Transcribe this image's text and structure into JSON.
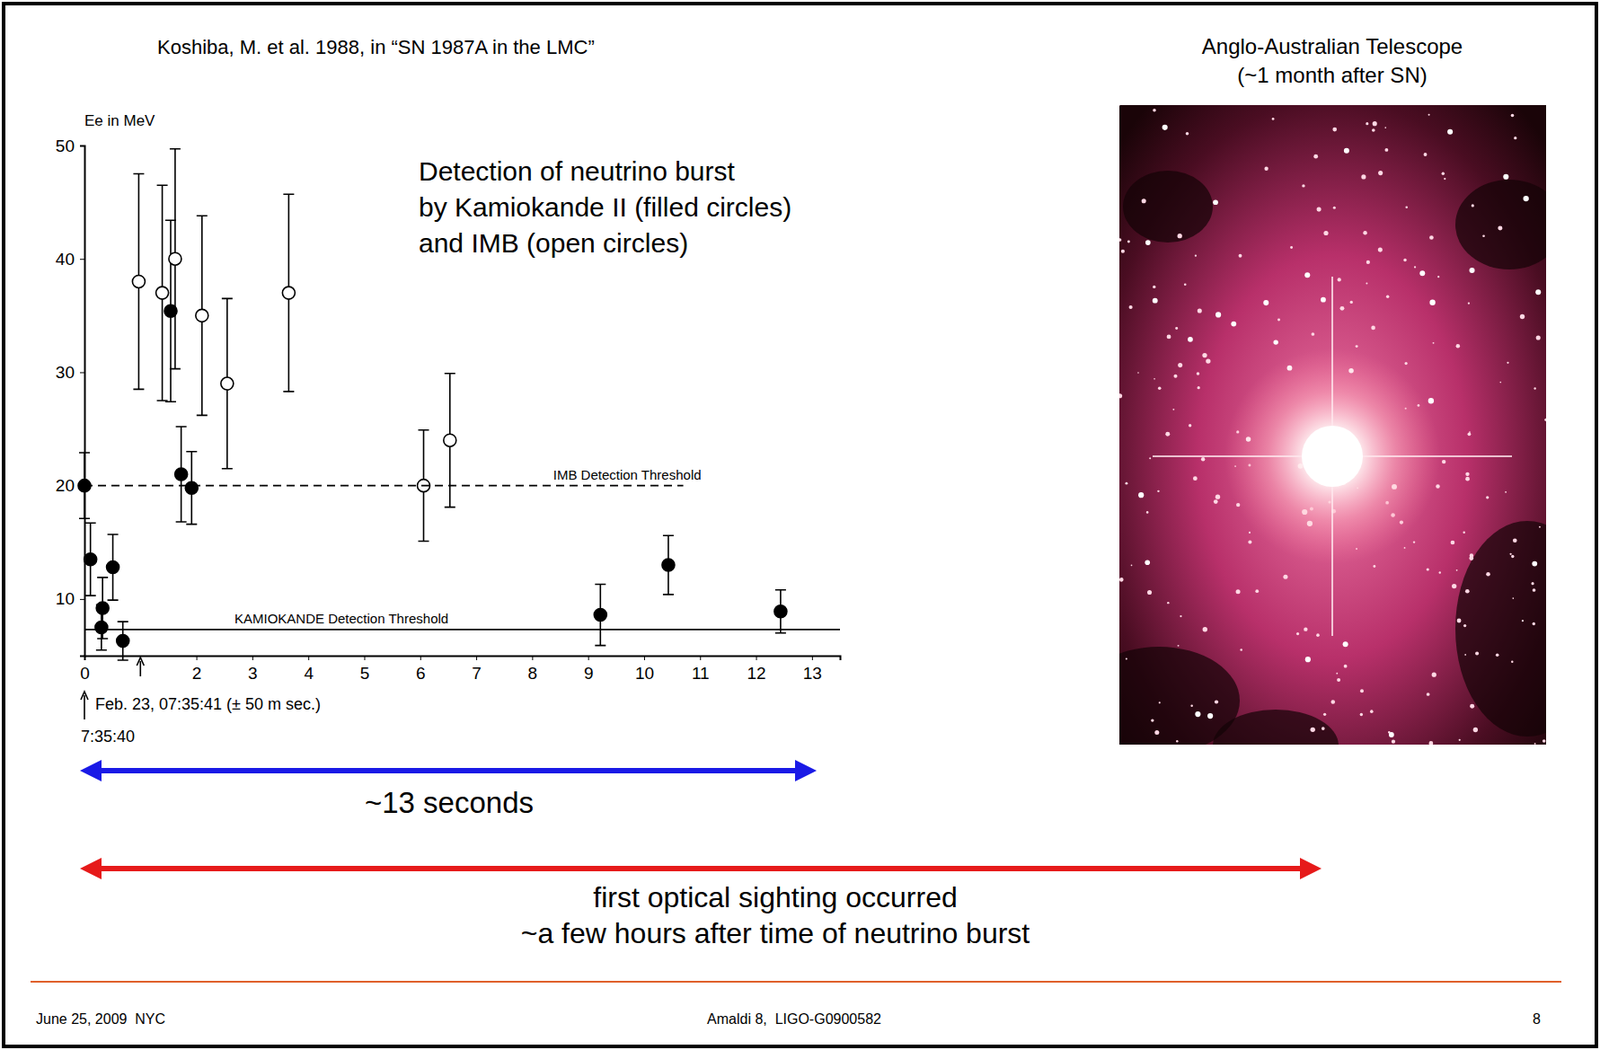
{
  "slide": {
    "citation": "Koshiba, M. et al. 1988, in “SN 1987A in the LMC”",
    "caption": [
      "Detection of neutrino burst",
      "by Kamiokande II (filled circles)",
      "and IMB (open circles)"
    ],
    "photo_title": [
      "Anglo-Australian Telescope",
      "(~1 month after SN)"
    ],
    "duration": "~13 seconds",
    "optical": [
      "first optical sighting occurred",
      "~a few hours after time of neutrino burst"
    ],
    "footer": {
      "left": "June 25, 2009  NYC",
      "center": "Amaldi 8,  LIGO-G0900582",
      "right": "8"
    }
  },
  "chart_data": {
    "type": "scatter",
    "y_label": "Ee in MeV",
    "xlim": [
      0,
      13.5
    ],
    "xticks": [
      0,
      2,
      3,
      4,
      5,
      6,
      7,
      8,
      9,
      10,
      11,
      12,
      13
    ],
    "ylim": [
      5,
      50
    ],
    "yticks": [
      10,
      20,
      30,
      40,
      50
    ],
    "annotations": [
      {
        "text": "7:35:40",
        "x": 0
      },
      {
        "text": "Feb. 23, 07:35:41 (± 50 m sec.)",
        "x": 1
      }
    ],
    "series": [
      {
        "type": "scatter",
        "marker": "filled",
        "x": [
          0,
          0.107,
          0.303,
          0.324,
          0.507,
          0.686,
          1.541,
          1.728,
          1.915,
          9.219,
          10.433,
          12.439
        ],
        "values": [
          20.0,
          13.5,
          7.5,
          9.2,
          12.8,
          6.3,
          35.4,
          21.0,
          19.8,
          8.6,
          13.0,
          8.9
        ],
        "errors": [
          2.9,
          3.2,
          2.0,
          2.7,
          2.9,
          1.7,
          8.0,
          4.2,
          3.2,
          2.7,
          2.6,
          1.9
        ]
      },
      {
        "type": "scatter",
        "marker": "open",
        "x": [
          0.97,
          1.39,
          1.62,
          2.1,
          2.55,
          3.65,
          6.06,
          6.53
        ],
        "values": [
          38,
          37,
          40,
          35,
          29,
          37,
          20,
          24
        ],
        "errors": [
          9.5,
          9.5,
          9.7,
          8.8,
          7.5,
          8.7,
          4.9,
          5.9
        ]
      },
      {
        "type": "line",
        "name": "IMB Detection Threshold",
        "line_style": "dashed",
        "x": [
          0,
          10.7
        ],
        "values": [
          20,
          20
        ]
      },
      {
        "type": "line",
        "name": "KAMIOKANDE Detection Threshold",
        "line_style": "solid",
        "x": [
          0,
          13.5
        ],
        "values": [
          7.3,
          7.3
        ]
      }
    ]
  }
}
